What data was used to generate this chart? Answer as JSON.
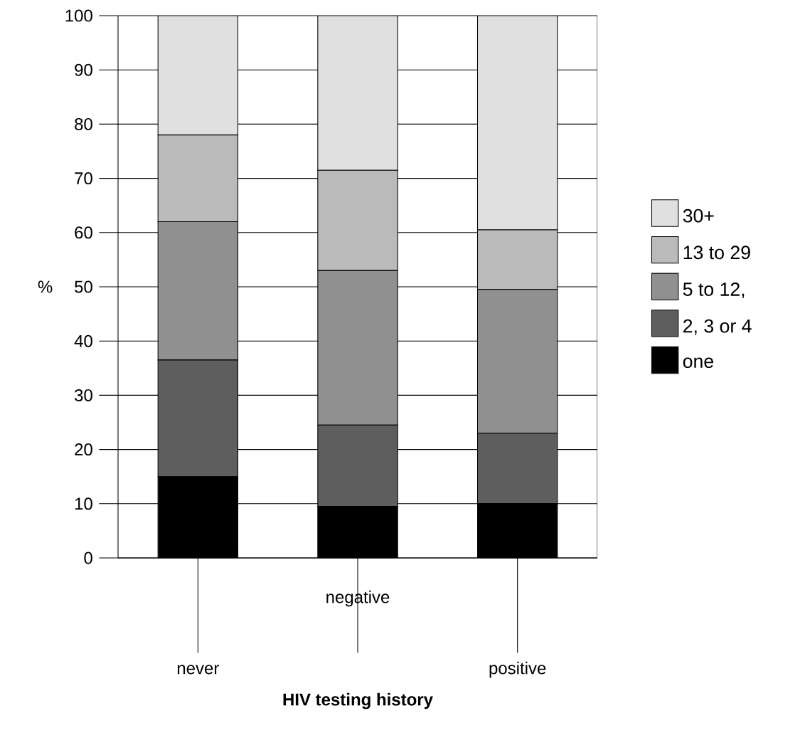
{
  "chart_data": {
    "type": "bar",
    "stacked": true,
    "xlabel": "HIV testing history",
    "ylabel": "%",
    "categories": [
      "never",
      "negative",
      "positive"
    ],
    "series": [
      {
        "name": "one",
        "color": "#000000",
        "values": [
          15,
          9.5,
          10
        ]
      },
      {
        "name": "2, 3 or 4",
        "color": "#5e5e5e",
        "values": [
          21.5,
          15,
          13
        ]
      },
      {
        "name": "5 to 12,",
        "color": "#909090",
        "values": [
          25.5,
          28.5,
          26.5
        ]
      },
      {
        "name": "13 to 29",
        "color": "#bababa",
        "values": [
          16,
          18.5,
          11
        ]
      },
      {
        "name": "30+",
        "color": "#e0e0e0",
        "values": [
          22,
          28.5,
          39.5
        ]
      }
    ],
    "ylim": [
      0,
      100
    ],
    "yticks": [
      0,
      10,
      20,
      30,
      40,
      50,
      60,
      70,
      80,
      90,
      100
    ],
    "grid": "y",
    "legend": "right"
  }
}
